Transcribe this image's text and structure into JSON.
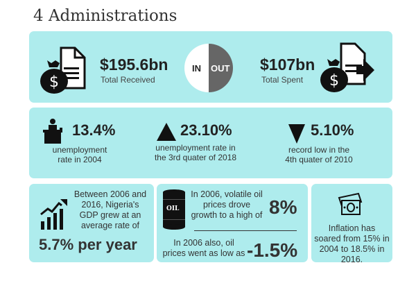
{
  "title": "4 Administrations",
  "flow": {
    "received_amount": "$195.6bn",
    "received_label": "Total Received",
    "in_label": "IN",
    "out_label": "OUT",
    "spent_amount": "$107bn",
    "spent_label": "Total Spent"
  },
  "unemployment": [
    {
      "value": "13.4%",
      "line1": "unemployment",
      "line2": "rate in 2004"
    },
    {
      "value": "23.10%",
      "line1": "unemployment rate in",
      "line2": "the 3rd quater of 2018"
    },
    {
      "value": "5.10%",
      "line1": "record low in the",
      "line2": "4th quater of 2010"
    }
  ],
  "gdp": {
    "text": [
      "Between 2006 and",
      "2016, Nigeria's",
      "GDP grew at an",
      "average rate of"
    ],
    "value": "5.7% per year"
  },
  "oil": {
    "barrel_label": "OIL",
    "high_text": [
      "In 2006, volatile oil",
      "prices drove",
      "growth to a high of"
    ],
    "high_value": "8%",
    "low_text": [
      "In 2006 also, oil",
      "prices went as low as"
    ],
    "low_value": "-1.5%"
  },
  "inflation": {
    "text": [
      "Inflation has",
      "soared from 15% in",
      "2004 to 18.5% in",
      "2016."
    ]
  },
  "colors": {
    "panel": "#aeeced",
    "out": "#666666"
  }
}
